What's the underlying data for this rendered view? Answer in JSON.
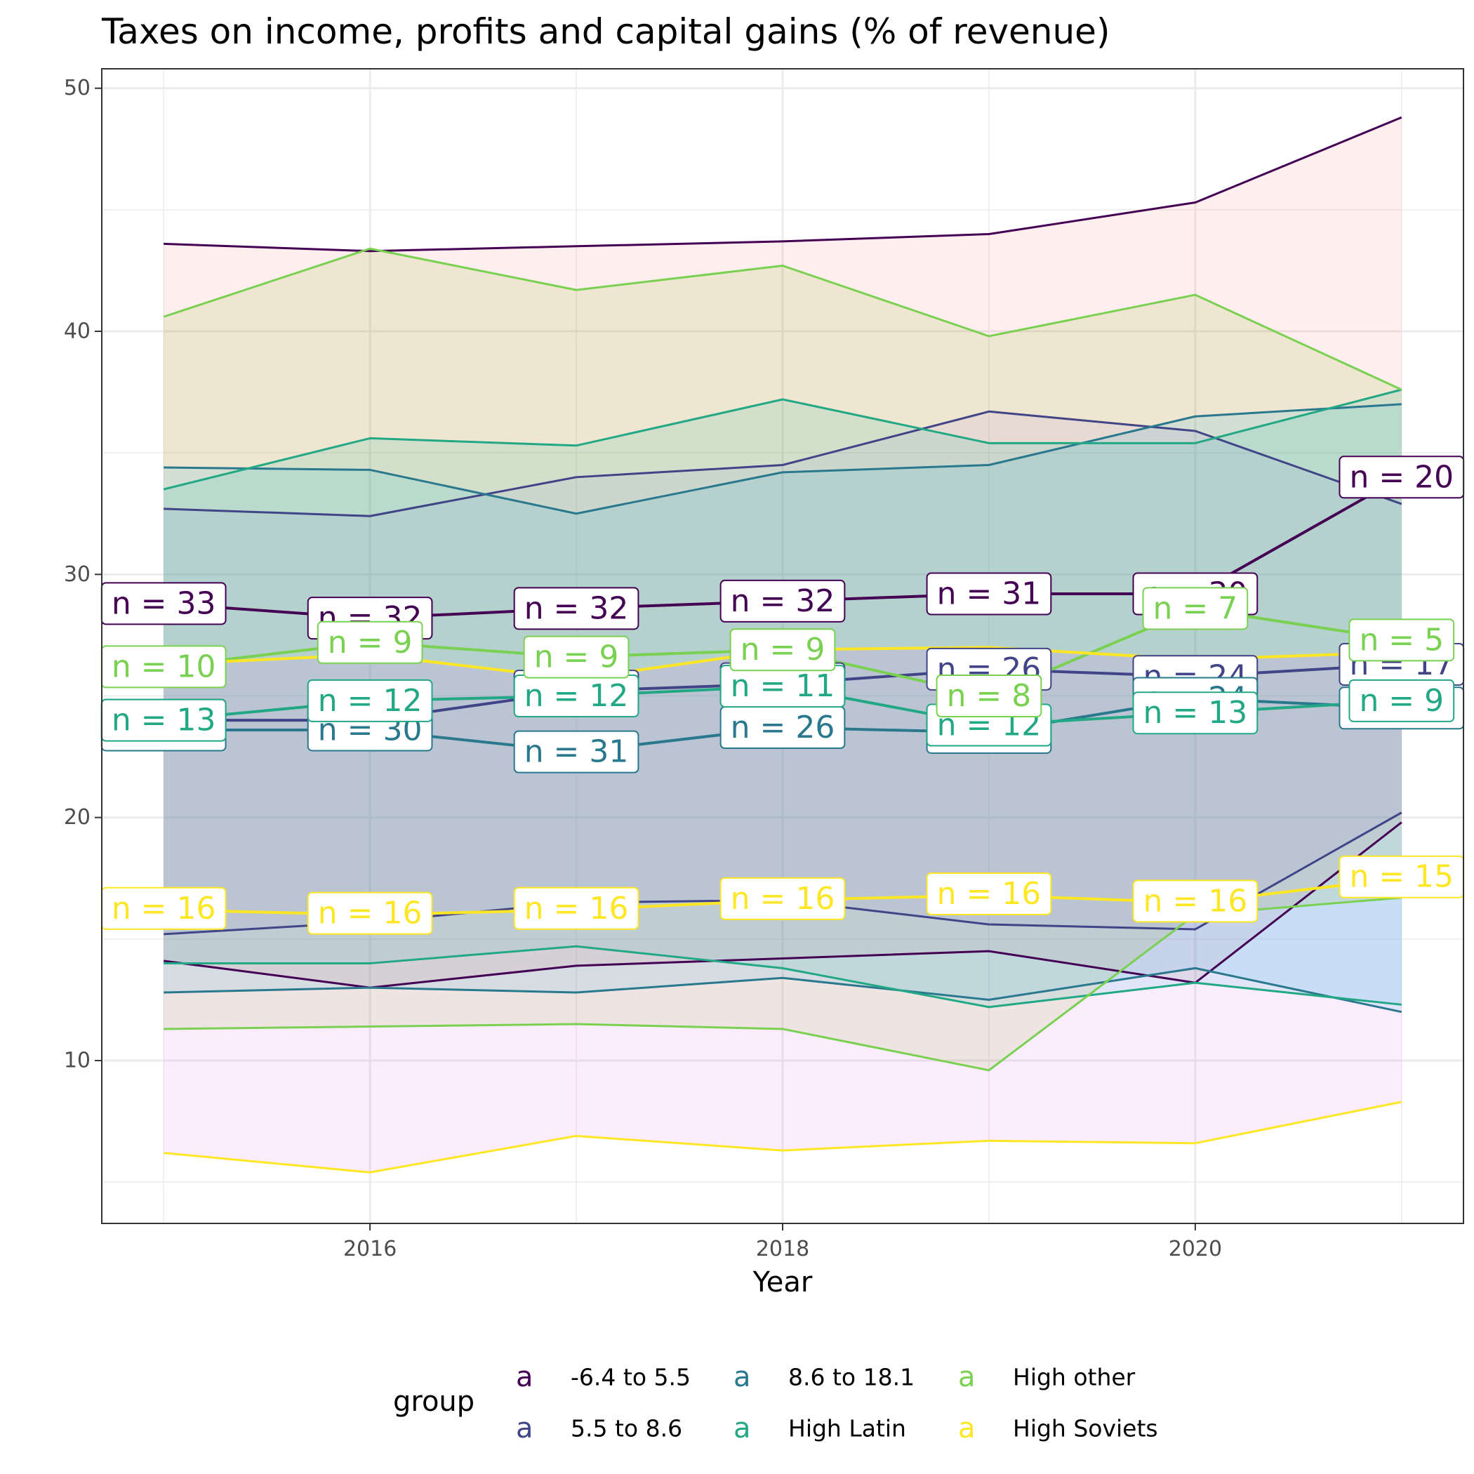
{
  "chart_data": {
    "type": "line",
    "title": "Taxes on income, profits and capital gains (% of revenue)",
    "xlabel": "Year",
    "ylabel": "",
    "xlim": [
      2014.7,
      2021.3
    ],
    "ylim": [
      3.3,
      50.8
    ],
    "x_ticks": [
      2016,
      2018,
      2020
    ],
    "y_ticks": [
      10,
      20,
      30,
      40,
      50
    ],
    "grid": true,
    "legend": {
      "title": "group",
      "position": "bottom",
      "key_glyph": "a"
    },
    "x": [
      2015,
      2016,
      2017,
      2018,
      2019,
      2020,
      2021
    ],
    "series": [
      {
        "name": "-6.4 to 5.5",
        "color": "#440154",
        "fill": "#F8766D",
        "median": [
          28.8,
          28.2,
          28.6,
          28.9,
          29.2,
          29.2,
          34.0
        ],
        "upper": [
          43.6,
          43.3,
          43.5,
          43.7,
          44.0,
          45.3,
          48.8
        ],
        "lower": [
          14.1,
          13.0,
          13.9,
          14.2,
          14.5,
          13.2,
          19.8
        ],
        "n": [
          33,
          32,
          32,
          32,
          31,
          30,
          20
        ]
      },
      {
        "name": "5.5 to 8.6",
        "color": "#414487",
        "fill": "#B983FF",
        "median": [
          24.0,
          24.0,
          25.2,
          25.5,
          26.1,
          25.8,
          26.3
        ],
        "upper": [
          32.7,
          32.4,
          34.0,
          34.5,
          36.7,
          35.9,
          32.9
        ],
        "lower": [
          15.2,
          15.7,
          16.5,
          16.6,
          15.6,
          15.4,
          20.2
        ],
        "n": [
          24,
          23,
          25,
          25,
          26,
          24,
          17
        ]
      },
      {
        "name": "8.6 to 18.1",
        "color": "#2A788E",
        "fill": "#00A9FF",
        "median": [
          23.6,
          23.6,
          22.7,
          23.7,
          23.5,
          24.9,
          24.5
        ],
        "upper": [
          34.4,
          34.3,
          32.5,
          34.2,
          34.5,
          36.5,
          37.0
        ],
        "lower": [
          12.8,
          13.0,
          12.8,
          13.4,
          12.5,
          13.8,
          12.0
        ],
        "n": [
          31,
          30,
          31,
          26,
          25,
          24,
          16
        ]
      },
      {
        "name": "High Latin",
        "color": "#22A884",
        "fill": "#00BFC4",
        "median": [
          24.0,
          24.8,
          25.0,
          25.4,
          23.8,
          24.3,
          24.8
        ],
        "upper": [
          33.5,
          35.6,
          35.3,
          37.2,
          35.4,
          35.4,
          37.6
        ],
        "lower": [
          14.0,
          14.0,
          14.7,
          13.8,
          12.2,
          13.2,
          12.3
        ],
        "n": [
          13,
          12,
          12,
          11,
          12,
          13,
          9
        ]
      },
      {
        "name": "High other",
        "color": "#7AD151",
        "fill": "#7CAE00",
        "median": [
          26.2,
          27.2,
          26.6,
          26.9,
          25.0,
          28.6,
          27.3
        ],
        "upper": [
          40.6,
          43.4,
          41.7,
          42.7,
          39.8,
          41.5,
          37.6
        ],
        "lower": [
          11.3,
          11.4,
          11.5,
          11.3,
          9.6,
          16.0,
          16.7
        ],
        "n": [
          10,
          9,
          9,
          9,
          8,
          7,
          5
        ]
      },
      {
        "name": "High Soviets",
        "color": "#FDE725",
        "fill": "#E76BF3",
        "median": [
          26.3,
          26.7,
          25.7,
          26.9,
          27.0,
          26.5,
          26.8
        ],
        "upper": [
          26.3,
          26.7,
          25.7,
          26.9,
          27.0,
          26.5,
          26.8
        ],
        "lower": [
          6.2,
          5.4,
          6.9,
          6.3,
          6.7,
          6.6,
          8.3
        ],
        "mean": [
          16.2,
          16.0,
          16.2,
          16.6,
          16.8,
          16.5,
          17.5
        ],
        "n": [
          16,
          16,
          16,
          16,
          16,
          16,
          15
        ]
      }
    ]
  }
}
